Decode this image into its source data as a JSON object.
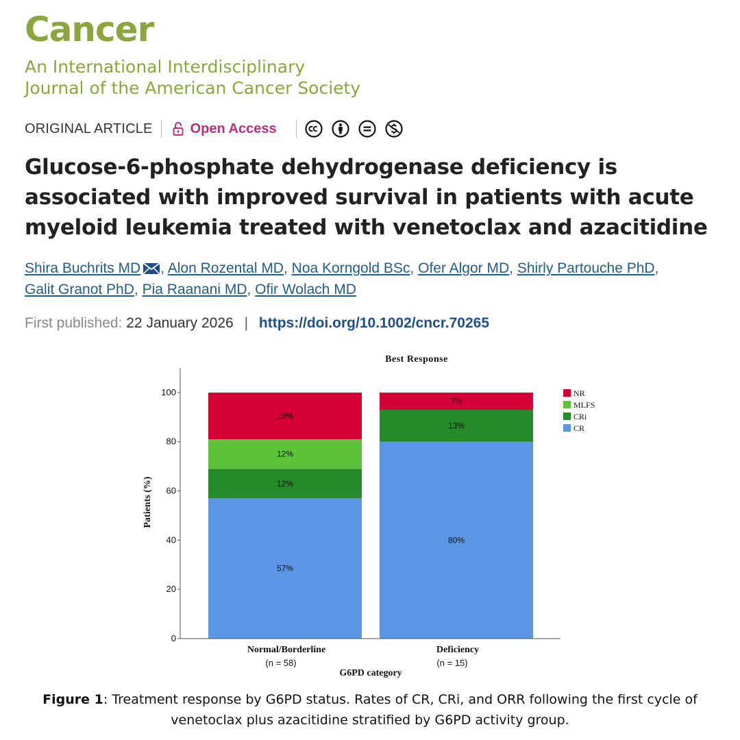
{
  "journal": {
    "name": "Cancer",
    "subtitle_line1": "An International Interdisciplinary",
    "subtitle_line2": "Journal of the American Cancer Society"
  },
  "article": {
    "type": "ORIGINAL ARTICLE",
    "access": "Open Access",
    "license_icons": [
      "cc-icon",
      "by-icon",
      "nd-icon",
      "nc-icon"
    ],
    "title": "Glucose-6-phosphate dehydrogenase deficiency is associated with improved survival in patients with acute myeloid leukemia treated with venetoclax and azacitidine",
    "authors": [
      "Shira Buchrits MD",
      "Alon Rozental MD",
      "Noa Korngold BSc",
      "Ofer Algor MD",
      "Shirly Partouche PhD",
      "Galit Granot PhD",
      "Pia Raanani MD",
      "Ofir Wolach MD"
    ],
    "first_published_label": "First published:",
    "first_published_date": "22 January 2026",
    "doi": "https://doi.org/10.1002/cncr.70265"
  },
  "chart_data": {
    "type": "bar",
    "stacked": true,
    "title": "Best Response",
    "xlabel": "G6PD category",
    "ylabel": "Patients (%)",
    "ylim": [
      0,
      110
    ],
    "yticks": [
      0,
      20,
      40,
      60,
      80,
      100
    ],
    "categories": [
      "Normal/Borderline",
      "Deficiency"
    ],
    "category_sublabels": [
      "(n = 58)",
      "(n = 15)"
    ],
    "series": [
      {
        "name": "CR",
        "color": "#5a96e3",
        "values": [
          57,
          80
        ],
        "labels": [
          "57%",
          "80%"
        ]
      },
      {
        "name": "CRi",
        "color": "#248a2a",
        "values": [
          12,
          13
        ],
        "labels": [
          "12%",
          "13%"
        ]
      },
      {
        "name": "MLFS",
        "color": "#5cc43a",
        "values": [
          12,
          0
        ],
        "labels": [
          "12%",
          ""
        ]
      },
      {
        "name": "NR",
        "color": "#d40035",
        "values": [
          19,
          7
        ],
        "labels": [
          "19%",
          "7%"
        ]
      }
    ],
    "legend": {
      "position": "top-right",
      "order": [
        "NR",
        "MLFS",
        "CRi",
        "CR"
      ]
    },
    "grid": false
  },
  "caption": {
    "label": "Figure 1",
    "text": ": Treatment response by G6PD status. Rates of CR, CRi, and ORR following the first cycle of venetoclax plus azacitidine stratified by G6PD activity group."
  }
}
